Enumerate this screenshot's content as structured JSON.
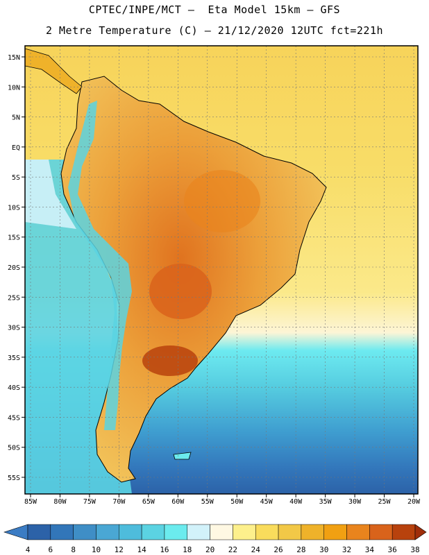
{
  "header": {
    "line1": "CPTEC/INPE/MCT –  Eta Model 15km – GFS",
    "line2": "2 Metre Temperature (C) – 21/12/2020 12UTC fct=221h"
  },
  "axes": {
    "lat_labels": [
      "15N",
      "10N",
      "5N",
      "EQ",
      "5S",
      "10S",
      "15S",
      "20S",
      "25S",
      "30S",
      "35S",
      "40S",
      "45S",
      "50S",
      "55S"
    ],
    "lat_values": [
      15,
      10,
      5,
      0,
      -5,
      -10,
      -15,
      -20,
      -25,
      -30,
      -35,
      -40,
      -45,
      -50,
      -55
    ],
    "lon_labels": [
      "85W",
      "80W",
      "75W",
      "70W",
      "65W",
      "60W",
      "55W",
      "50W",
      "45W",
      "40W",
      "35W",
      "30W",
      "25W",
      "20W"
    ],
    "lon_values": [
      -85,
      -80,
      -75,
      -70,
      -65,
      -60,
      -55,
      -50,
      -45,
      -40,
      -35,
      -30,
      -25,
      -20
    ]
  },
  "colorbar": {
    "labels": [
      "4",
      "6",
      "8",
      "10",
      "12",
      "14",
      "16",
      "18",
      "20",
      "22",
      "24",
      "26",
      "28",
      "30",
      "32",
      "34",
      "36",
      "38"
    ],
    "colors": [
      "#2c62a8",
      "#3276b9",
      "#3f8ec6",
      "#4aa7d4",
      "#4ebcdc",
      "#5bd3e2",
      "#6bebee",
      "#d2f2fa",
      "#fff8e3",
      "#fdf08c",
      "#f9dc5c",
      "#f2c847",
      "#efb22a",
      "#f1a012",
      "#e9841d",
      "#d9631b",
      "#b8420d"
    ],
    "low_color": "#3b7cc4",
    "high_color": "#a02e0a"
  }
}
